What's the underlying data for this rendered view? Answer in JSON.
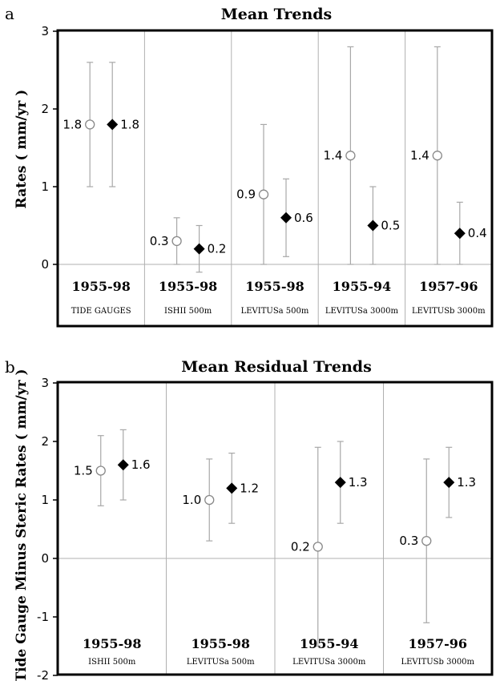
{
  "chart_data": [
    {
      "type": "scatter",
      "panel": "a",
      "title": "Mean Trends",
      "ylabel": "Rates ( mm/yr )",
      "ylim": [
        0,
        3
      ],
      "yticks": [
        0,
        1,
        2,
        3
      ],
      "groups": [
        {
          "period": "1955-98",
          "dataset": "TIDE GAUGES",
          "open": {
            "value": 1.8,
            "low": 1.0,
            "high": 2.6,
            "label": "1.8"
          },
          "filled": {
            "value": 1.8,
            "low": 1.0,
            "high": 2.6,
            "label": "1.8"
          }
        },
        {
          "period": "1955-98",
          "dataset": "ISHII 500m",
          "open": {
            "value": 0.3,
            "low": 0.0,
            "high": 0.6,
            "label": "0.3"
          },
          "filled": {
            "value": 0.2,
            "low": -0.1,
            "high": 0.5,
            "label": "0.2"
          }
        },
        {
          "period": "1955-98",
          "dataset": "LEVITUSa 500m",
          "open": {
            "value": 0.9,
            "low": 0.0,
            "high": 1.8,
            "label": "0.9"
          },
          "filled": {
            "value": 0.6,
            "low": 0.1,
            "high": 1.1,
            "label": "0.6"
          }
        },
        {
          "period": "1955-94",
          "dataset": "LEVITUSa 3000m",
          "open": {
            "value": 1.4,
            "low": 0.0,
            "high": 2.8,
            "label": "1.4"
          },
          "filled": {
            "value": 0.5,
            "low": 0.0,
            "high": 1.0,
            "label": "0.5"
          }
        },
        {
          "period": "1957-96",
          "dataset": "LEVITUSb 3000m",
          "open": {
            "value": 1.4,
            "low": 0.0,
            "high": 2.8,
            "label": "1.4"
          },
          "filled": {
            "value": 0.4,
            "low": 0.0,
            "high": 0.8,
            "label": "0.4"
          }
        }
      ]
    },
    {
      "type": "scatter",
      "panel": "b",
      "title": "Mean Residual Trends",
      "ylabel": "Tide Gauge Minus Steric Rates ( mm/yr )",
      "ylim": [
        -2,
        3
      ],
      "yticks": [
        -2,
        -1,
        0,
        1,
        2,
        3
      ],
      "groups": [
        {
          "period": "1955-98",
          "dataset": "ISHII 500m",
          "open": {
            "value": 1.5,
            "low": 0.9,
            "high": 2.1,
            "label": "1.5"
          },
          "filled": {
            "value": 1.6,
            "low": 1.0,
            "high": 2.2,
            "label": "1.6"
          }
        },
        {
          "period": "1955-98",
          "dataset": "LEVITUSa 500m",
          "open": {
            "value": 1.0,
            "low": 0.3,
            "high": 1.7,
            "label": "1.0"
          },
          "filled": {
            "value": 1.2,
            "low": 0.6,
            "high": 1.8,
            "label": "1.2"
          }
        },
        {
          "period": "1955-94",
          "dataset": "LEVITUSa 3000m",
          "open": {
            "value": 0.2,
            "low": -1.5,
            "high": 1.9,
            "label": "0.2"
          },
          "filled": {
            "value": 1.3,
            "low": 0.6,
            "high": 2.0,
            "label": "1.3"
          }
        },
        {
          "period": "1957-96",
          "dataset": "LEVITUSb 3000m",
          "open": {
            "value": 0.3,
            "low": -1.1,
            "high": 1.7,
            "label": "0.3"
          },
          "filled": {
            "value": 1.3,
            "low": 0.7,
            "high": 1.9,
            "label": "1.3"
          }
        }
      ]
    }
  ],
  "colors": {
    "frame": "#000000",
    "divider": "#b0b0b0",
    "errorbar": "#a8a8a8",
    "open_marker_stroke": "#888888",
    "filled_marker": "#000000"
  }
}
